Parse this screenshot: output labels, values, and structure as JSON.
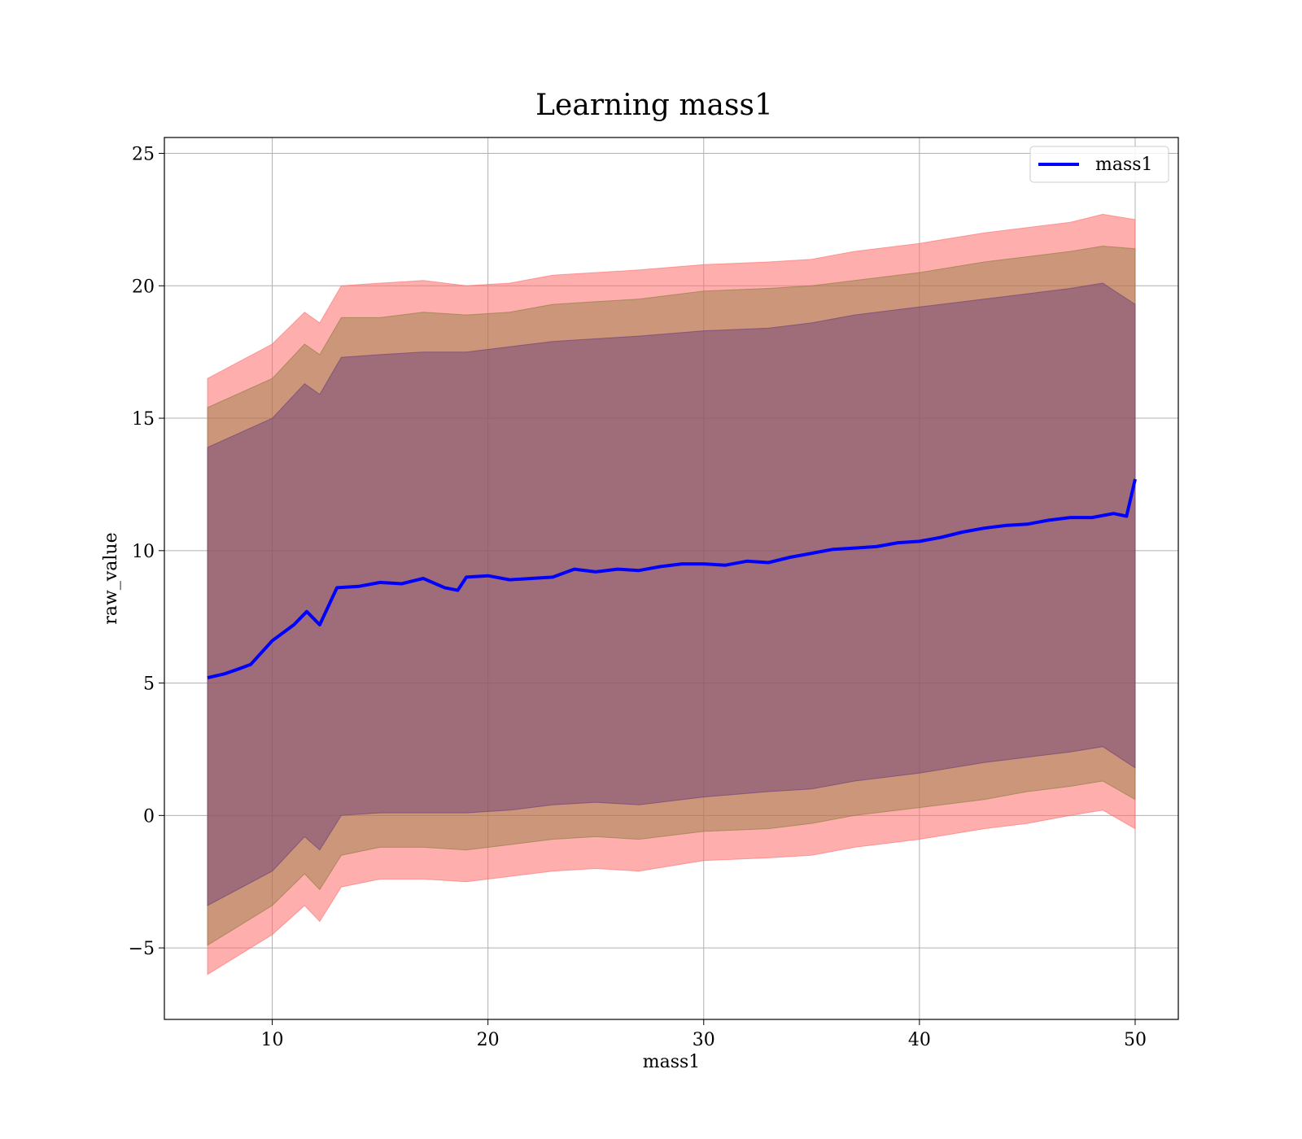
{
  "chart_data": {
    "type": "line",
    "title": "Learning mass1",
    "xlabel": "mass1",
    "ylabel": "raw_value",
    "xlim": [
      5,
      52
    ],
    "ylim": [
      -7.7,
      25.6
    ],
    "x_ticks": [
      10,
      20,
      30,
      40,
      50
    ],
    "x_tick_labels": [
      "10",
      "20",
      "30",
      "40",
      "50"
    ],
    "y_ticks": [
      -5,
      0,
      5,
      10,
      15,
      20,
      25
    ],
    "y_tick_labels": [
      "−5",
      "0",
      "5",
      "10",
      "15",
      "20",
      "25"
    ],
    "grid": true,
    "legend": {
      "position": "top-right",
      "entries": [
        "mass1"
      ]
    },
    "colors": {
      "line": "#0000ff",
      "band_outer": "#ff6b6b",
      "band_middle": "#8c7a3a",
      "band_inner": "#6b3a7a"
    },
    "series": [
      {
        "name": "mass1",
        "x": [
          7,
          7.8,
          8.5,
          9,
          10,
          11,
          11.6,
          12.2,
          13,
          14,
          15,
          16,
          17,
          18,
          18.6,
          19,
          20,
          21,
          22,
          23,
          24,
          25,
          26,
          27,
          28,
          29,
          30,
          31,
          32,
          33,
          34,
          35,
          36,
          37,
          38,
          39,
          40,
          41,
          42,
          43,
          44,
          45,
          46,
          47,
          48,
          49,
          49.6,
          50
        ],
        "y": [
          5.2,
          5.35,
          5.55,
          5.7,
          6.6,
          7.2,
          7.7,
          7.2,
          8.6,
          8.65,
          8.8,
          8.75,
          8.95,
          8.6,
          8.5,
          9.0,
          9.05,
          8.9,
          8.95,
          9.0,
          9.3,
          9.2,
          9.3,
          9.25,
          9.4,
          9.5,
          9.5,
          9.45,
          9.6,
          9.55,
          9.75,
          9.9,
          10.05,
          10.1,
          10.15,
          10.3,
          10.35,
          10.5,
          10.7,
          10.85,
          10.95,
          11.0,
          11.15,
          11.25,
          11.25,
          11.4,
          11.3,
          12.7
        ]
      }
    ],
    "bands": [
      {
        "x": [
          7,
          10,
          11.5,
          12.2,
          13.2,
          15,
          17,
          19,
          21,
          23,
          25,
          27,
          30,
          33,
          35,
          37,
          40,
          43,
          45,
          47,
          48.5,
          50
        ],
        "upper": [
          16.5,
          17.8,
          19.0,
          18.6,
          20.0,
          20.1,
          20.2,
          20.0,
          20.1,
          20.4,
          20.5,
          20.6,
          20.8,
          20.9,
          21.0,
          21.3,
          21.6,
          22.0,
          22.2,
          22.4,
          22.7,
          22.5
        ],
        "lower": [
          -6.0,
          -4.5,
          -3.4,
          -4.0,
          -2.7,
          -2.4,
          -2.4,
          -2.5,
          -2.3,
          -2.1,
          -2.0,
          -2.1,
          -1.7,
          -1.6,
          -1.5,
          -1.2,
          -0.9,
          -0.5,
          -0.3,
          0.0,
          0.2,
          -0.5
        ]
      },
      {
        "x": [
          7,
          10,
          11.5,
          12.2,
          13.2,
          15,
          17,
          19,
          21,
          23,
          25,
          27,
          30,
          33,
          35,
          37,
          40,
          43,
          45,
          47,
          48.5,
          50
        ],
        "upper": [
          15.4,
          16.5,
          17.8,
          17.4,
          18.8,
          18.8,
          19.0,
          18.9,
          19.0,
          19.3,
          19.4,
          19.5,
          19.8,
          19.9,
          20.0,
          20.2,
          20.5,
          20.9,
          21.1,
          21.3,
          21.5,
          21.4
        ],
        "lower": [
          -4.9,
          -3.4,
          -2.2,
          -2.8,
          -1.5,
          -1.2,
          -1.2,
          -1.3,
          -1.1,
          -0.9,
          -0.8,
          -0.9,
          -0.6,
          -0.5,
          -0.3,
          0.0,
          0.3,
          0.6,
          0.9,
          1.1,
          1.3,
          0.6
        ]
      },
      {
        "x": [
          7,
          10,
          11.5,
          12.2,
          13.2,
          15,
          17,
          19,
          21,
          23,
          25,
          27,
          30,
          33,
          35,
          37,
          40,
          43,
          45,
          47,
          48.5,
          50
        ],
        "upper": [
          13.9,
          15.0,
          16.3,
          15.9,
          17.3,
          17.4,
          17.5,
          17.5,
          17.7,
          17.9,
          18.0,
          18.1,
          18.3,
          18.4,
          18.6,
          18.9,
          19.2,
          19.5,
          19.7,
          19.9,
          20.1,
          19.3
        ],
        "lower": [
          -3.4,
          -2.1,
          -0.8,
          -1.3,
          0.0,
          0.1,
          0.1,
          0.1,
          0.2,
          0.4,
          0.5,
          0.4,
          0.7,
          0.9,
          1.0,
          1.3,
          1.6,
          2.0,
          2.2,
          2.4,
          2.6,
          1.8
        ]
      }
    ]
  }
}
